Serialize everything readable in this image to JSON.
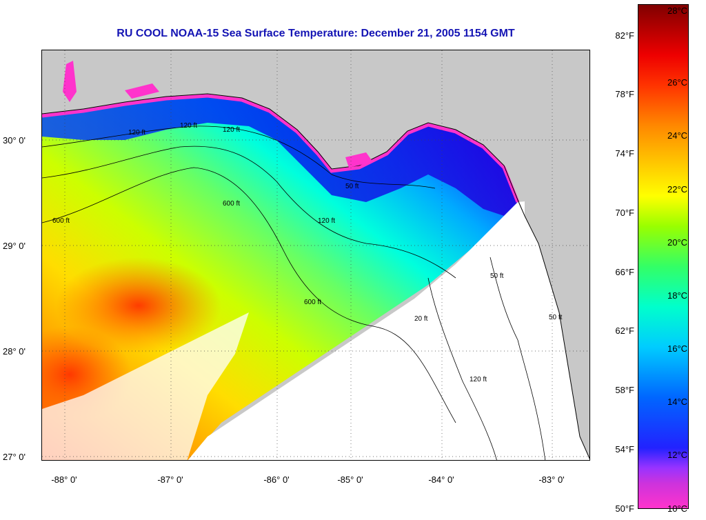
{
  "title": "RU COOL  NOAA-15  Sea Surface Temperature:  December 21, 2005 1154 GMT",
  "colors": {
    "land": "#c8c8c8",
    "title": "#1414b4"
  },
  "latitude_labels": [
    "30° 0'",
    "29° 0'",
    "28° 0'",
    "27° 0'"
  ],
  "longitude_labels": [
    "-88° 0'",
    "-87° 0'",
    "-86° 0'",
    "-85° 0'",
    "-84° 0'",
    "-83° 0'"
  ],
  "contour_labels": [
    "120 ft",
    "120 ft",
    "120 ft",
    "600 ft",
    "600 ft",
    "600 ft",
    "50 ft",
    "50 ft",
    "120 ft",
    "50 ft",
    "20 ft",
    "120 ft"
  ],
  "colorbar": {
    "fahrenheit_labels": [
      "82°F",
      "78°F",
      "74°F",
      "70°F",
      "66°F",
      "62°F",
      "58°F",
      "54°F",
      "50°F"
    ],
    "celsius_labels": [
      "28°C",
      "26°C",
      "24°C",
      "22°C",
      "20°C",
      "18°C",
      "16°C",
      "14°C",
      "12°C",
      "10°C"
    ]
  }
}
